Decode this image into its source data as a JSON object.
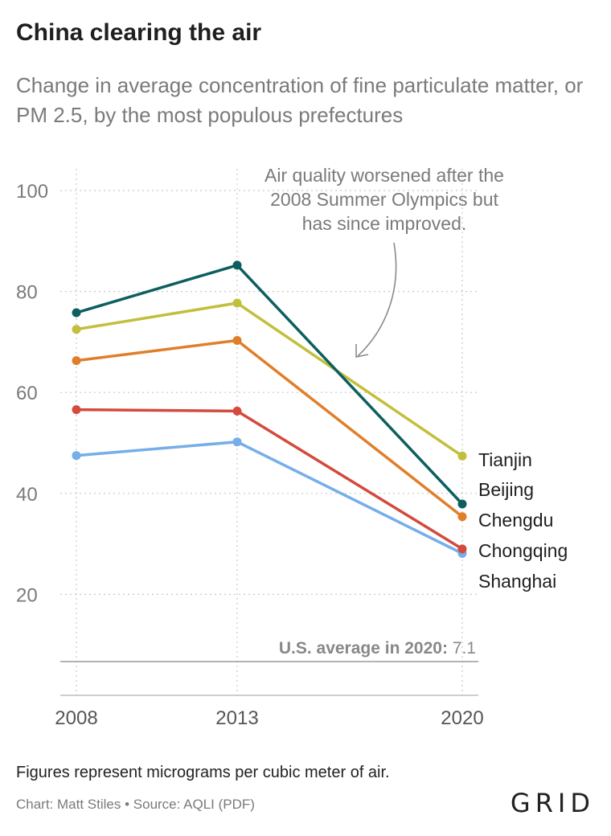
{
  "chart_data": {
    "type": "line",
    "title": "China clearing the air",
    "subtitle": "Change in average concentration of fine particulate matter, or PM 2.5, by the most populous prefectures",
    "x": [
      "2008",
      "2013",
      "2020"
    ],
    "y_ticks": [
      "100",
      "80",
      "60",
      "40",
      "20"
    ],
    "ylim": [
      0,
      100
    ],
    "grid": true,
    "series": [
      {
        "name": "Tianjin",
        "color": "#c2bf3d",
        "values": [
          72.5,
          77.7,
          47.4
        ]
      },
      {
        "name": "Beijing",
        "color": "#0d5f5f",
        "values": [
          75.8,
          85.2,
          37.9
        ]
      },
      {
        "name": "Chengdu",
        "color": "#e07f2a",
        "values": [
          66.3,
          70.3,
          35.4
        ]
      },
      {
        "name": "Chongqing",
        "color": "#d44a3c",
        "values": [
          56.6,
          56.3,
          29.0
        ]
      },
      {
        "name": "Shanghai",
        "color": "#75aee8",
        "values": [
          47.5,
          50.2,
          28.1
        ]
      }
    ],
    "annotation": {
      "lines": [
        "Air quality worsened after the",
        "2008 Summer Olympics but",
        "has since improved."
      ]
    },
    "reference": {
      "label": "U.S. average in 2020:",
      "value_label": "7.1",
      "value": 7.1
    }
  },
  "footer": {
    "note": "Figures represent micrograms per cubic meter of air.",
    "credit": "Chart: Matt Stiles • Source: AQLI (PDF)",
    "logo": "GRID"
  }
}
